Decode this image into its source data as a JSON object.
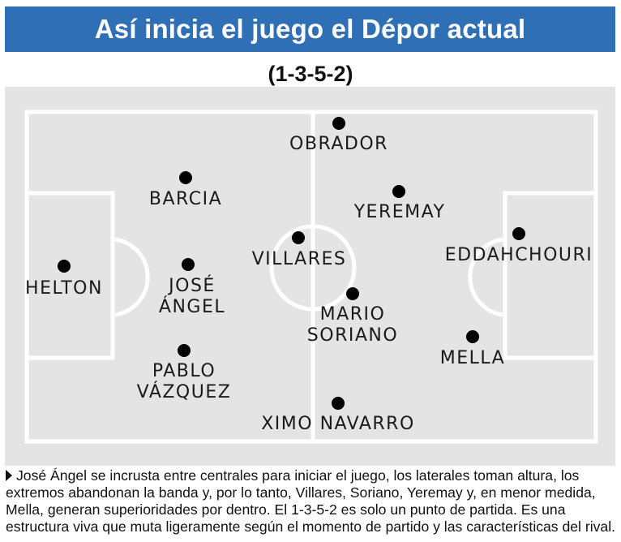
{
  "header": {
    "title": "Así inicia el juego el Dépor actual"
  },
  "formation": "(1-3-5-2)",
  "players": [
    {
      "id": "helton",
      "lines": [
        "HELTON"
      ]
    },
    {
      "id": "barcia",
      "lines": [
        "BARCIA"
      ]
    },
    {
      "id": "jose-angel",
      "lines": [
        "JOSÉ",
        "ÁNGEL"
      ]
    },
    {
      "id": "pablo-vazquez",
      "lines": [
        "PABLO",
        "VÁZQUEZ"
      ]
    },
    {
      "id": "obrador",
      "lines": [
        "OBRADOR"
      ]
    },
    {
      "id": "villares",
      "lines": [
        "VILLARES"
      ]
    },
    {
      "id": "mario-soriano",
      "lines": [
        "MARIO",
        "SORIANO"
      ]
    },
    {
      "id": "ximo-navarro",
      "lines": [
        "XIMO NAVARRO"
      ]
    },
    {
      "id": "yeremay",
      "lines": [
        "YEREMAY"
      ]
    },
    {
      "id": "eddahchouri",
      "lines": [
        "EDDAHCHOURI"
      ]
    },
    {
      "id": "mella",
      "lines": [
        "MELLA"
      ]
    }
  ],
  "caption": "José Ángel se incrusta entre centrales para iniciar el juego, los laterales toman altura, los extremos abandonan la banda y, por lo tanto, Villares, Soriano, Yeremay y, en menor medida, Mella, generan superioridades por dentro. El 1-3-5-2 es solo un punto de partida. Es una estructura viva que muta ligeramente según el momento de partido y las características del rival.",
  "colors": {
    "header_bg": "#2f6fb5",
    "pitch": "#e4e4e4",
    "lines": "#ffffff",
    "dot": "#000000"
  }
}
